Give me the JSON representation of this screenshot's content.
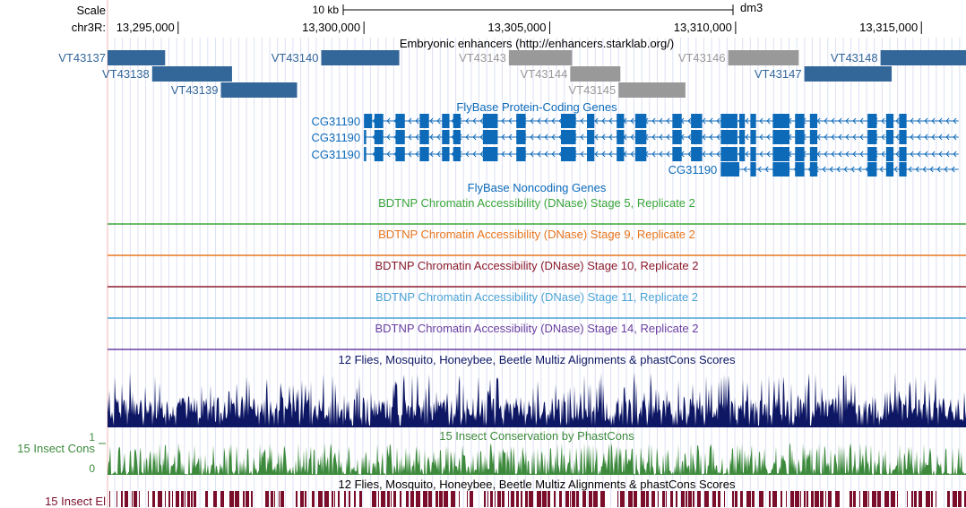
{
  "header": {
    "scale_label": "Scale",
    "scale_bar_label": "10 kb",
    "assembly": "dm3",
    "chrom_label": "chr3R:"
  },
  "region": {
    "start": 13293100,
    "end": 13316200
  },
  "ruler": {
    "ticks": [
      {
        "pos": 13295000,
        "label": "13,295,000"
      },
      {
        "pos": 13300000,
        "label": "13,300,000"
      },
      {
        "pos": 13305000,
        "label": "13,305,000"
      },
      {
        "pos": 13310000,
        "label": "13,310,000"
      },
      {
        "pos": 13315000,
        "label": "13,315,000"
      }
    ]
  },
  "tracks": {
    "enhancers": {
      "title": "Embryonic enhancers (http://enhancers.starklab.org/)",
      "items": [
        {
          "name": "VT43137",
          "start": 13293100,
          "end": 13294650,
          "color": "#336699"
        },
        {
          "name": "VT43138",
          "start": 13294300,
          "end": 13296450,
          "color": "#336699"
        },
        {
          "name": "VT43139",
          "start": 13296150,
          "end": 13298200,
          "color": "#336699"
        },
        {
          "name": "VT43140",
          "start": 13298850,
          "end": 13300950,
          "color": "#336699"
        },
        {
          "name": "VT43143",
          "start": 13303900,
          "end": 13305600,
          "color": "#999999"
        },
        {
          "name": "VT43144",
          "start": 13305550,
          "end": 13306900,
          "color": "#999999"
        },
        {
          "name": "VT43145",
          "start": 13306850,
          "end": 13308650,
          "color": "#999999"
        },
        {
          "name": "VT43146",
          "start": 13309800,
          "end": 13311700,
          "color": "#999999"
        },
        {
          "name": "VT43147",
          "start": 13311850,
          "end": 13314200,
          "color": "#336699"
        },
        {
          "name": "VT43148",
          "start": 13313900,
          "end": 13316200,
          "color": "#336699"
        }
      ]
    },
    "protein_genes": {
      "title": "FlyBase Protein-Coding Genes",
      "color": "#0d6ab8",
      "transcripts": [
        {
          "name": "CG31190",
          "start": 13300000,
          "end": 13316000,
          "exons": [
            [
              13300000,
              13300220
            ],
            [
              13300280,
              13300520
            ],
            [
              13300850,
              13301100
            ],
            [
              13301500,
              13301750
            ],
            [
              13302100,
              13302300
            ],
            [
              13302400,
              13302600
            ],
            [
              13303200,
              13303600
            ],
            [
              13304100,
              13304350
            ],
            [
              13305300,
              13305700
            ],
            [
              13306000,
              13306200
            ],
            [
              13306800,
              13307000
            ],
            [
              13307300,
              13307600
            ],
            [
              13308300,
              13308550
            ],
            [
              13308800,
              13309100
            ],
            [
              13309600,
              13310050
            ],
            [
              13310100,
              13310250
            ],
            [
              13310400,
              13310550
            ],
            [
              13311000,
              13311450
            ],
            [
              13311600,
              13311850
            ],
            [
              13312000,
              13312200
            ],
            [
              13313550,
              13313800
            ],
            [
              13314050,
              13314250
            ],
            [
              13314400,
              13314600
            ]
          ]
        },
        {
          "name": "CG31190",
          "start": 13300000,
          "end": 13316000,
          "exons": [
            [
              13300000,
              13300060
            ],
            [
              13300280,
              13300520
            ],
            [
              13300850,
              13301100
            ],
            [
              13301500,
              13301750
            ],
            [
              13302100,
              13302300
            ],
            [
              13302400,
              13302600
            ],
            [
              13303200,
              13303600
            ],
            [
              13304100,
              13304350
            ],
            [
              13305300,
              13305700
            ],
            [
              13306000,
              13306200
            ],
            [
              13306800,
              13307000
            ],
            [
              13307300,
              13307600
            ],
            [
              13308300,
              13308550
            ],
            [
              13308800,
              13309100
            ],
            [
              13309600,
              13310050
            ],
            [
              13310100,
              13310250
            ],
            [
              13310400,
              13310550
            ],
            [
              13311000,
              13311450
            ],
            [
              13311600,
              13311850
            ],
            [
              13312000,
              13312200
            ],
            [
              13313550,
              13313800
            ],
            [
              13314050,
              13314250
            ],
            [
              13314400,
              13314600
            ]
          ]
        },
        {
          "name": "CG31190",
          "start": 13300000,
          "end": 13316000,
          "exons": [
            [
              13300000,
              13300060
            ],
            [
              13300280,
              13300520
            ],
            [
              13300850,
              13301100
            ],
            [
              13301500,
              13301750
            ],
            [
              13302100,
              13302300
            ],
            [
              13302400,
              13302600
            ],
            [
              13303200,
              13303600
            ],
            [
              13304100,
              13304350
            ],
            [
              13305300,
              13305700
            ],
            [
              13306000,
              13306200
            ],
            [
              13306800,
              13307000
            ],
            [
              13307300,
              13307600
            ],
            [
              13308300,
              13308550
            ],
            [
              13308800,
              13309100
            ],
            [
              13309600,
              13310050
            ],
            [
              13310100,
              13310250
            ],
            [
              13310400,
              13310550
            ],
            [
              13311000,
              13311450
            ],
            [
              13311600,
              13311850
            ],
            [
              13312000,
              13312200
            ],
            [
              13313550,
              13313800
            ],
            [
              13314050,
              13314250
            ],
            [
              13314400,
              13314600
            ]
          ]
        },
        {
          "name": "CG31190",
          "start": 13309600,
          "end": 13316000,
          "exons": [
            [
              13309600,
              13310100
            ],
            [
              13310400,
              13310550
            ],
            [
              13311000,
              13311450
            ],
            [
              13311600,
              13311850
            ],
            [
              13312000,
              13312200
            ],
            [
              13313550,
              13313800
            ],
            [
              13314050,
              13314250
            ],
            [
              13314400,
              13314600
            ]
          ]
        }
      ]
    },
    "noncoding_genes": {
      "title": "FlyBase Noncoding Genes"
    },
    "dnase": [
      {
        "title": "BDTNP Chromatin Accessibility (DNase) Stage 5, Replicate 2",
        "color": "#3aa53a"
      },
      {
        "title": "BDTNP Chromatin Accessibility (DNase) Stage 9, Replicate 2",
        "color": "#e8761e"
      },
      {
        "title": "BDTNP Chromatin Accessibility (DNase) Stage 10, Replicate 2",
        "color": "#8b1a2b"
      },
      {
        "title": "BDTNP Chromatin Accessibility (DNase) Stage 11, Replicate 2",
        "color": "#4ca3d4"
      },
      {
        "title": "BDTNP Chromatin Accessibility (DNase) Stage 14, Replicate 2",
        "color": "#6a3fa0"
      }
    ],
    "multiz": {
      "title": "12 Flies, Mosquito, Honeybee, Beetle Multiz Alignments & phastCons Scores",
      "color": "#0e1764"
    },
    "phastcons": {
      "title": "15 Insect Conservation by PhastCons",
      "side_label": "15 Insect Cons",
      "y_max_label": "1",
      "y_min_label": "0",
      "color": "#3d8a3d"
    },
    "elements": {
      "title": "12 Flies, Mosquito, Honeybee, Beetle Multiz Alignments & phastCons Scores",
      "side_label": "15 Insect El",
      "color": "#7a0e2a"
    }
  },
  "colors": {
    "label_blue": "#336699",
    "label_gray": "#999999",
    "gene_blue": "#0d6ab8",
    "grid": "#dde0f5",
    "left_margin_line": "#f4b6b6"
  }
}
